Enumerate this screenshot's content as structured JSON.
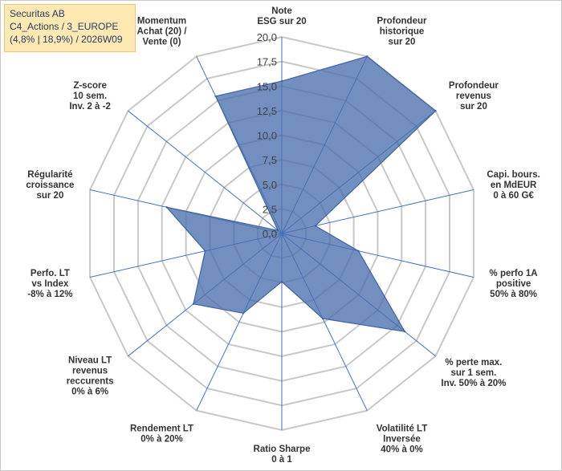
{
  "header": {
    "line1": "Securitas AB",
    "line2": "C4_Actions / 3_EUROPE",
    "line3": "(4,8% | 18,9%) / 2026W09"
  },
  "colors": {
    "fill": "#4a6fae",
    "stroke": "#3f64a5",
    "grid": "#c8c8c8",
    "spoke": "#4472c4",
    "info_bg": "#fde9b1"
  },
  "chart_data": {
    "type": "radar",
    "title": "",
    "rlim": [
      0,
      20
    ],
    "rticks": [
      "0,0",
      "2,5",
      "5,0",
      "7,5",
      "10,0",
      "12,5",
      "15,0",
      "17,5",
      "20,0"
    ],
    "axes": [
      {
        "label": [
          "Note",
          "ESG sur 20"
        ],
        "value": 15.5
      },
      {
        "label": [
          "Profondeur",
          "historique",
          "sur 20"
        ],
        "value": 20
      },
      {
        "label": [
          "Profondeur",
          "revenus",
          "sur 20"
        ],
        "value": 20
      },
      {
        "label": [
          "Capi. bours.",
          "en MdEUR",
          "0 à 60 G€"
        ],
        "value": 3.5
      },
      {
        "label": [
          "% perfo 1A",
          "positive",
          "50% à 80%"
        ],
        "value": 8.0
      },
      {
        "label": [
          "% perte max.",
          "sur 1 sem.",
          "Inv. 50% à 20%"
        ],
        "value": 16.0
      },
      {
        "label": [
          "Volatilité LT",
          "Inversée",
          "40% à 0%"
        ],
        "value": 9.6
      },
      {
        "label": [
          "Ratio Sharpe",
          "0 à 1"
        ],
        "value": 4.9
      },
      {
        "label": [
          "Rendement LT",
          "0% à 20%"
        ],
        "value": 9.0
      },
      {
        "label": [
          "Niveau LT",
          "revenus",
          "reccurents",
          "0% à 6%"
        ],
        "value": 11.5
      },
      {
        "label": [
          "Perfo. LT",
          "vs Index",
          "-8% à 12%"
        ],
        "value": 8.0
      },
      {
        "label": [
          "Régularité",
          "croissance",
          "sur 20"
        ],
        "value": 12.0
      },
      {
        "label": [
          "Z-score",
          "10 sem.",
          "Inv. 2 à -2"
        ],
        "value": 0.5
      },
      {
        "label": [
          "Momentum",
          "Achat (20) /",
          "Vente (0)"
        ],
        "value": 15.5
      }
    ]
  }
}
